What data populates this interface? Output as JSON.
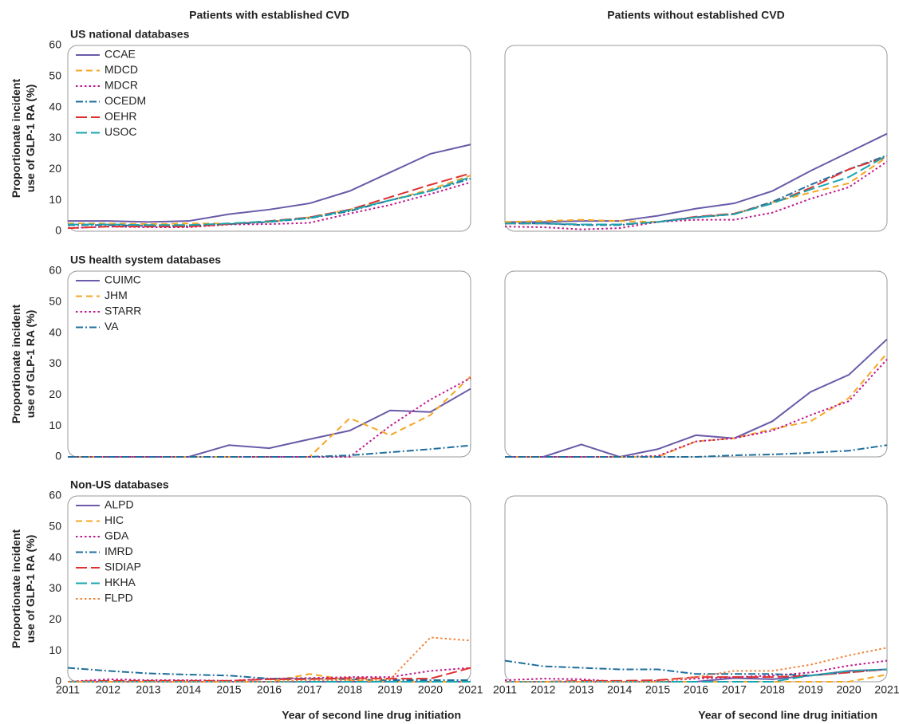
{
  "chart_data": [
    {
      "type": "line",
      "column_title": "Patients with established CVD",
      "title": "US national databases",
      "ylabel": [
        "Proportionate incident",
        "use of GLP-1 RA (%)"
      ],
      "x": [
        2011,
        2012,
        2013,
        2014,
        2015,
        2016,
        2017,
        2018,
        2019,
        2020,
        2021
      ],
      "xlim": [
        2011,
        2021
      ],
      "ylim": [
        0,
        60
      ],
      "yticks": [
        0,
        10,
        20,
        30,
        40,
        50,
        60
      ],
      "legend": "upper left",
      "series": [
        {
          "name": "CCAE",
          "color": "#6a5aa8",
          "dash": "solid",
          "values": [
            3.3,
            3.3,
            3,
            3.3,
            5.5,
            7,
            9,
            13,
            19,
            25,
            28
          ]
        },
        {
          "name": "MDCD",
          "color": "#f5a623",
          "dash": "dashed",
          "values": [
            2.5,
            2.5,
            2.3,
            2.5,
            2.5,
            3,
            4.5,
            7,
            10,
            13.5,
            18
          ]
        },
        {
          "name": "MDCR",
          "color": "#c0168c",
          "dash": "dotted",
          "values": [
            1,
            1.5,
            1.3,
            1.3,
            2.2,
            2.3,
            2.7,
            5.7,
            8.5,
            12,
            15.8
          ]
        },
        {
          "name": "OCEDM",
          "color": "#1f6e9c",
          "dash": "dashdot",
          "values": [
            2,
            2,
            1.7,
            1.7,
            2.3,
            3,
            4.2,
            6.5,
            10,
            13,
            17
          ]
        },
        {
          "name": "OEHR",
          "color": "#e03030",
          "dash": "longdash",
          "values": [
            1,
            1.5,
            1.5,
            1.5,
            2.3,
            3.3,
            4.5,
            7,
            11,
            15,
            18.7
          ]
        },
        {
          "name": "USOC",
          "color": "#1aa6b0",
          "dash": "longdash",
          "values": [
            2.2,
            2.2,
            2,
            2,
            2.5,
            3.2,
            4.3,
            6.8,
            10,
            13,
            17.5
          ]
        }
      ]
    },
    {
      "type": "line",
      "column_title": "Patients without established CVD",
      "x": [
        2011,
        2012,
        2013,
        2014,
        2015,
        2016,
        2017,
        2018,
        2019,
        2020,
        2021
      ],
      "xlim": [
        2011,
        2021
      ],
      "ylim": [
        0,
        60
      ],
      "series": [
        {
          "color": "#6a5aa8",
          "dash": "solid",
          "values": [
            3,
            3,
            3.3,
            3.3,
            5,
            7.3,
            9,
            13,
            19.5,
            25.5,
            31.5
          ]
        },
        {
          "color": "#f5a623",
          "dash": "dashed",
          "values": [
            3,
            3.3,
            3.7,
            3.3,
            3,
            4.5,
            5.5,
            9.3,
            12.5,
            15.5,
            24
          ]
        },
        {
          "color": "#c0168c",
          "dash": "dotted",
          "values": [
            1.5,
            1.3,
            0.6,
            1,
            3,
            3.7,
            3.7,
            6,
            10.5,
            14.2,
            22.5
          ]
        },
        {
          "color": "#1f6e9c",
          "dash": "dashdot",
          "values": [
            2.5,
            2.5,
            2,
            2,
            3,
            4.5,
            5.5,
            9.5,
            15,
            20,
            24.5
          ]
        },
        {
          "color": "#e03030",
          "dash": "longdash",
          "values": [
            2.5,
            2.5,
            2.2,
            2.2,
            3,
            4.7,
            5.7,
            9,
            14,
            20,
            24
          ]
        },
        {
          "color": "#1aa6b0",
          "dash": "longdash",
          "values": [
            2.5,
            2.5,
            2.2,
            2.2,
            3,
            4.5,
            5.5,
            9,
            13.5,
            17.5,
            24.5
          ]
        }
      ]
    },
    {
      "type": "line",
      "title": "US health system databases",
      "ylabel": [
        "Proportionate incident",
        "use of GLP-1 RA (%)"
      ],
      "x": [
        2011,
        2012,
        2013,
        2014,
        2015,
        2016,
        2017,
        2018,
        2019,
        2020,
        2021
      ],
      "xlim": [
        2011,
        2021
      ],
      "ylim": [
        0,
        60
      ],
      "yticks": [
        0,
        10,
        20,
        30,
        40,
        50,
        60
      ],
      "legend": "upper left",
      "series": [
        {
          "name": "CUIMC",
          "color": "#6a5aa8",
          "dash": "solid",
          "values": [
            0,
            0,
            0,
            0,
            3.8,
            2.8,
            5.7,
            8.5,
            15,
            14.5,
            22
          ]
        },
        {
          "name": "JHM",
          "color": "#f5a623",
          "dash": "dashed",
          "values": [
            0,
            0,
            0,
            0,
            0,
            0,
            0,
            12.5,
            7,
            13.5,
            26
          ]
        },
        {
          "name": "STARR",
          "color": "#c0168c",
          "dash": "dotted",
          "values": [
            0,
            0,
            0,
            0,
            0,
            0,
            0,
            0,
            10,
            18.5,
            25.5
          ]
        },
        {
          "name": "VA",
          "color": "#1f6e9c",
          "dash": "dashdot",
          "values": [
            0,
            0,
            0,
            0,
            0,
            0,
            0,
            0.5,
            1.5,
            2.5,
            3.7
          ]
        }
      ]
    },
    {
      "type": "line",
      "x": [
        2011,
        2012,
        2013,
        2014,
        2015,
        2016,
        2017,
        2018,
        2019,
        2020,
        2021
      ],
      "xlim": [
        2011,
        2021
      ],
      "ylim": [
        0,
        60
      ],
      "series": [
        {
          "color": "#6a5aa8",
          "dash": "solid",
          "values": [
            0,
            0,
            4,
            0,
            2.5,
            7,
            6,
            11.5,
            21,
            26.5,
            38
          ]
        },
        {
          "color": "#f5a623",
          "dash": "dashed",
          "values": [
            0,
            0,
            0,
            0,
            0,
            5,
            6,
            9,
            11.5,
            19,
            33.5
          ]
        },
        {
          "color": "#c0168c",
          "dash": "dotted",
          "values": [
            0,
            0,
            0,
            0,
            0.3,
            5,
            6,
            8.5,
            13.5,
            18,
            31.5
          ]
        },
        {
          "color": "#1f6e9c",
          "dash": "dashdot",
          "values": [
            0,
            0,
            0,
            0,
            0,
            0,
            0.5,
            0.8,
            1.3,
            2,
            3.8
          ]
        }
      ]
    },
    {
      "type": "line",
      "title": "Non-US databases",
      "ylabel": [
        "Proportionate incident",
        "use of GLP-1 RA (%)"
      ],
      "xlabel": "Year of second line drug initiation",
      "x": [
        2011,
        2012,
        2013,
        2014,
        2015,
        2016,
        2017,
        2018,
        2019,
        2020,
        2021
      ],
      "xlim": [
        2011,
        2021
      ],
      "xticks": [
        2011,
        2012,
        2013,
        2014,
        2015,
        2016,
        2017,
        2018,
        2019,
        2020,
        2021
      ],
      "ylim": [
        0,
        60
      ],
      "yticks": [
        0,
        10,
        20,
        30,
        40,
        50,
        60
      ],
      "legend": "upper left",
      "series": [
        {
          "name": "ALPD",
          "color": "#6a5aa8",
          "dash": "solid",
          "values": [
            0,
            0,
            0,
            0,
            0,
            0,
            0,
            0,
            0,
            0,
            0
          ]
        },
        {
          "name": "HIC",
          "color": "#f5a623",
          "dash": "dashed",
          "values": [
            0,
            0,
            0,
            0,
            0,
            0,
            2.5,
            0.5,
            0,
            0,
            0
          ]
        },
        {
          "name": "GDA",
          "color": "#c0168c",
          "dash": "dotted",
          "values": [
            0,
            0.8,
            0.5,
            0.5,
            0.3,
            1,
            1.2,
            1.5,
            1.5,
            3.5,
            4.5
          ]
        },
        {
          "name": "IMRD",
          "color": "#1f6e9c",
          "dash": "dashdot",
          "values": [
            4.5,
            3.5,
            2.7,
            2.3,
            2,
            1,
            1,
            0.8,
            0.5,
            0.5,
            0.5
          ]
        },
        {
          "name": "SIDIAP",
          "color": "#e03030",
          "dash": "longdash",
          "values": [
            0,
            0.3,
            0.3,
            0.3,
            0.3,
            0.8,
            0.8,
            1.2,
            1,
            1,
            4.5
          ]
        },
        {
          "name": "HKHA",
          "color": "#1aa6b0",
          "dash": "longdash",
          "values": [
            0,
            0,
            0,
            0,
            0,
            0,
            0,
            0,
            0,
            0,
            0
          ]
        },
        {
          "name": "FLPD",
          "color": "#f0833a",
          "dash": "dotted",
          "values": [
            0,
            0,
            0,
            0,
            0,
            0,
            0.5,
            0.5,
            0.8,
            14.3,
            13.3
          ]
        }
      ]
    },
    {
      "type": "line",
      "xlabel": "Year of second line drug initiation",
      "x": [
        2011,
        2012,
        2013,
        2014,
        2015,
        2016,
        2017,
        2018,
        2019,
        2020,
        2021
      ],
      "xlim": [
        2011,
        2021
      ],
      "xticks": [
        2011,
        2012,
        2013,
        2014,
        2015,
        2016,
        2017,
        2018,
        2019,
        2020,
        2021
      ],
      "ylim": [
        0,
        60
      ],
      "series": [
        {
          "color": "#6a5aa8",
          "dash": "solid",
          "values": [
            0,
            0,
            0,
            0,
            0,
            0,
            1.2,
            0.8,
            2,
            3.5,
            4
          ]
        },
        {
          "color": "#f5a623",
          "dash": "dashed",
          "values": [
            0,
            0,
            0,
            0,
            0,
            0,
            0,
            0,
            0,
            0,
            2.3
          ]
        },
        {
          "color": "#c0168c",
          "dash": "dotted",
          "values": [
            0.5,
            1,
            0.8,
            0,
            0.3,
            1,
            1.5,
            2,
            3,
            5.2,
            6.8
          ]
        },
        {
          "color": "#1f6e9c",
          "dash": "dashdot",
          "values": [
            6.8,
            5,
            4.5,
            4,
            4,
            2.5,
            2.5,
            2.5,
            2,
            3,
            4
          ]
        },
        {
          "color": "#e03030",
          "dash": "longdash",
          "values": [
            0,
            0,
            0.3,
            0.3,
            0.5,
            1.5,
            1.5,
            1.5,
            2,
            3,
            4
          ]
        },
        {
          "color": "#1aa6b0",
          "dash": "longdash",
          "values": [
            0,
            0,
            0,
            0,
            0,
            0,
            0,
            0,
            2,
            3.5,
            4
          ]
        },
        {
          "color": "#f0833a",
          "dash": "dotted",
          "values": [
            0,
            0,
            0,
            0,
            0,
            1.5,
            3.5,
            3.5,
            5.5,
            8.5,
            11
          ]
        }
      ]
    }
  ]
}
